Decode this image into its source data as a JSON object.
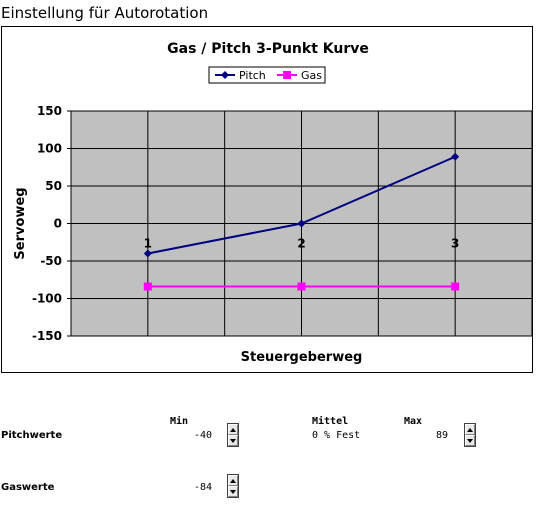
{
  "page": {
    "title": "Einstellung für Autorotation"
  },
  "chart_data": {
    "type": "line",
    "title": "Gas / Pitch 3-Punkt Kurve",
    "xlabel": "Steuergeberweg",
    "ylabel": "Servoweg",
    "categories": [
      "1",
      "2",
      "3"
    ],
    "ylim": [
      -150,
      150
    ],
    "yticks": [
      150,
      100,
      50,
      0,
      -50,
      -100,
      -150
    ],
    "grid": true,
    "legend": "top-center",
    "series": [
      {
        "name": "Pitch",
        "values": [
          -40,
          0,
          89
        ],
        "color": "#000080",
        "marker": "diamond"
      },
      {
        "name": "Gas",
        "values": [
          -84,
          -84,
          -84
        ],
        "color": "#ff00ff",
        "marker": "square"
      }
    ],
    "plot_background": "#c0c0c0"
  },
  "controls": {
    "headers": {
      "min": "Min",
      "mittel": "Mittel",
      "max": "Max"
    },
    "pitch": {
      "label": "Pitchwerte",
      "min": "-40",
      "mittel": "0 % Fest",
      "max": "89"
    },
    "gas": {
      "label": "Gaswerte",
      "min": "-84"
    }
  }
}
